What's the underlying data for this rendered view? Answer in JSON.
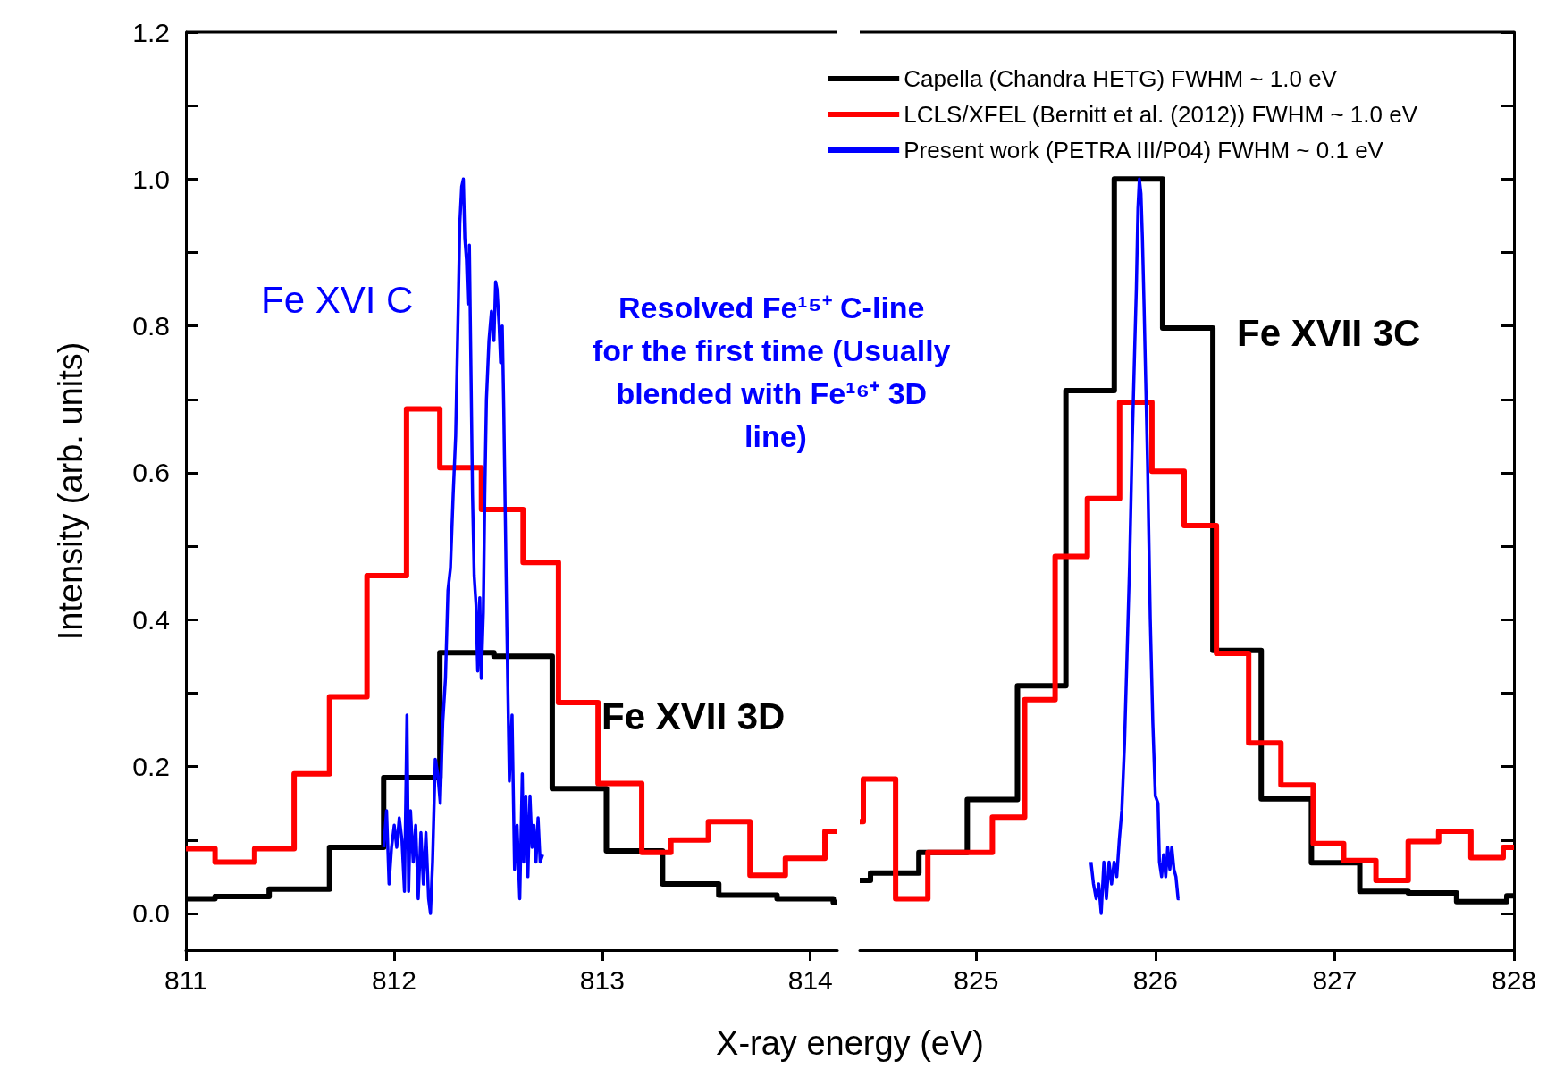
{
  "chart_data": [
    {
      "type": "step",
      "xlabel": "X-ray energy (eV)",
      "ylabel": "Intensity (arb. units)",
      "xlim": [
        811,
        814.13
      ],
      "xticks": [
        811,
        812,
        813,
        814
      ],
      "ylim": [
        -0.05,
        1.2
      ],
      "yticks": [
        {
          "value": 0,
          "label": "0.0"
        },
        {
          "value": 0.1,
          "label": null
        },
        {
          "value": 0.2,
          "label": "0.2"
        },
        {
          "value": 0.3,
          "label": null
        },
        {
          "value": 0.4,
          "label": "0.4"
        },
        {
          "value": 0.5,
          "label": null
        },
        {
          "value": 0.6,
          "label": "0.6"
        },
        {
          "value": 0.7,
          "label": null
        },
        {
          "value": 0.8,
          "label": "0.8"
        },
        {
          "value": 0.9,
          "label": null
        },
        {
          "value": 1,
          "label": "1.0"
        },
        {
          "value": 1.1,
          "label": null
        },
        {
          "value": 1.2,
          "label": "1.2"
        }
      ],
      "legend": "top right",
      "series": [
        {
          "name": "Capella (Chandra HETG) FWHM ~ 1.0 eV",
          "color": "#000000",
          "x": [
            811,
            811.14,
            811.4,
            811.69,
            811.95,
            812.22,
            812.48,
            812.76,
            813.02,
            813.29,
            813.56,
            813.84,
            814.11,
            814.13
          ],
          "values": [
            0.02,
            0.023,
            0.033,
            0.09,
            0.185,
            0.355,
            0.35,
            0.17,
            0.085,
            0.04,
            0.025,
            0.02,
            0.015,
            0.015
          ]
        },
        {
          "name": "LCLS/XFEL (Bernitt et al. (2012)) FWHM ~ 1.0 eV",
          "color": "#ff0000",
          "x": [
            811,
            811.14,
            811.33,
            811.52,
            811.69,
            811.87,
            812.06,
            812.22,
            812.42,
            812.62,
            812.79,
            812.98,
            813.19,
            813.33,
            813.51,
            813.71,
            813.88,
            814.07,
            814.13
          ],
          "values": [
            0.088,
            0.07,
            0.088,
            0.19,
            0.295,
            0.46,
            0.687,
            0.607,
            0.55,
            0.478,
            0.287,
            0.177,
            0.083,
            0.1,
            0.125,
            0.052,
            0.075,
            0.112,
            0.112
          ]
        },
        {
          "name": "Present work (PETRA III/P04) FWHM ~ 0.1 eV",
          "type": "line",
          "color": "#0000ff",
          "x": [
            811.951,
            811.964,
            811.976,
            811.988,
            812.001,
            812.013,
            812.025,
            812.038,
            812.05,
            812.062,
            812.07,
            812.079,
            812.092,
            812.104,
            812.116,
            812.129,
            812.141,
            812.153,
            812.166,
            812.175,
            812.185,
            812.198,
            812.21,
            812.222,
            812.234,
            812.247,
            812.259,
            812.271,
            812.284,
            812.296,
            812.308,
            812.316,
            812.325,
            812.333,
            812.34,
            812.348,
            812.355,
            812.362,
            812.37,
            812.377,
            812.385,
            812.394,
            812.402,
            812.412,
            812.419,
            812.429,
            812.436,
            812.444,
            812.456,
            812.468,
            812.48,
            812.488,
            812.495,
            812.505,
            812.512,
            812.52,
            812.527,
            812.535,
            812.542,
            812.554,
            812.567,
            812.579,
            812.591,
            812.604,
            812.616,
            812.623,
            812.633,
            812.643,
            812.653,
            812.663,
            812.672,
            812.682,
            812.692,
            812.702,
            812.714
          ],
          "values": [
            0.09,
            0.14,
            0.04,
            0.09,
            0.12,
            0.09,
            0.13,
            0.1,
            0.03,
            0.27,
            0.03,
            0.14,
            0.07,
            0.12,
            0.02,
            0.11,
            0.04,
            0.11,
            0.02,
            0,
            0.07,
            0.21,
            0.19,
            0.15,
            0.26,
            0.32,
            0.44,
            0.47,
            0.57,
            0.65,
            0.82,
            0.94,
            0.99,
            1,
            0.92,
            0.89,
            0.83,
            0.91,
            0.73,
            0.57,
            0.46,
            0.42,
            0.33,
            0.43,
            0.32,
            0.41,
            0.57,
            0.7,
            0.78,
            0.82,
            0.78,
            0.86,
            0.85,
            0.8,
            0.75,
            0.8,
            0.69,
            0.53,
            0.39,
            0.18,
            0.27,
            0.06,
            0.12,
            0.02,
            0.19,
            0.07,
            0.16,
            0.05,
            0.16,
            0.09,
            0.12,
            0.07,
            0.13,
            0.07,
            0.08
          ]
        }
      ],
      "annotations": [
        "Fe XVI C",
        "Resolved Fe¹⁵⁺ C-line for the first time (Usually blended with Fe¹⁶⁺ 3D line)",
        "Fe XVII 3D"
      ]
    },
    {
      "type": "step",
      "tick_labels": "x",
      "xlim": [
        824.35,
        828
      ],
      "xticks": [
        825,
        826,
        827,
        828
      ],
      "ylim": [
        -0.05,
        1.2
      ],
      "yticks": [
        {
          "value": 0,
          "label": null
        },
        {
          "value": 0.1,
          "label": null
        },
        {
          "value": 0.2,
          "label": null
        },
        {
          "value": 0.3,
          "label": null
        },
        {
          "value": 0.4,
          "label": null
        },
        {
          "value": 0.5,
          "label": null
        },
        {
          "value": 0.6,
          "label": null
        },
        {
          "value": 0.7,
          "label": null
        },
        {
          "value": 0.8,
          "label": null
        },
        {
          "value": 0.9,
          "label": null
        },
        {
          "value": 1,
          "label": null
        },
        {
          "value": 1.1,
          "label": null
        },
        {
          "value": 1.2,
          "label": null
        }
      ],
      "series": [
        {
          "color": "#000000",
          "x": [
            824.35,
            824.41,
            824.68,
            824.95,
            825.23,
            825.5,
            825.77,
            826.04,
            826.32,
            826.59,
            826.87,
            827.14,
            827.41,
            827.68,
            827.96,
            828
          ],
          "values": [
            0.045,
            0.055,
            0.083,
            0.155,
            0.31,
            0.712,
            1.0,
            0.797,
            0.358,
            0.156,
            0.069,
            0.03,
            0.028,
            0.016,
            0.024,
            0.024
          ]
        },
        {
          "color": "#ff0000",
          "x": [
            824.35,
            824.37,
            824.55,
            824.73,
            825.09,
            825.27,
            825.44,
            825.62,
            825.8,
            825.98,
            826.16,
            826.34,
            826.52,
            826.7,
            826.88,
            827.05,
            827.23,
            827.41,
            827.58,
            827.76,
            827.94,
            828
          ],
          "values": [
            0.125,
            0.183,
            0.02,
            0.083,
            0.131,
            0.291,
            0.486,
            0.565,
            0.696,
            0.602,
            0.528,
            0.354,
            0.232,
            0.175,
            0.095,
            0.072,
            0.045,
            0.098,
            0.112,
            0.076,
            0.09,
            0.09
          ]
        },
        {
          "type": "line",
          "color": "#0000ff",
          "x": [
            825.64,
            825.654,
            825.669,
            825.683,
            825.697,
            825.712,
            825.726,
            825.741,
            825.755,
            825.769,
            825.784,
            825.798,
            825.812,
            825.827,
            825.841,
            825.856,
            825.87,
            825.884,
            825.893,
            825.902,
            825.91,
            825.919,
            825.927,
            825.936,
            825.945,
            825.956,
            825.971,
            825.985,
            825.999,
            826.014,
            826.022,
            826.034,
            826.045,
            826.057,
            826.068,
            826.08,
            826.091,
            826.103,
            826.114,
            826.126,
            826.134
          ],
          "values": [
            0.07,
            0.04,
            0.02,
            0.04,
            0,
            0.07,
            0.02,
            0.07,
            0.04,
            0.07,
            0.05,
            0.1,
            0.14,
            0.23,
            0.35,
            0.48,
            0.64,
            0.77,
            0.85,
            0.96,
            1,
            0.98,
            0.92,
            0.83,
            0.73,
            0.61,
            0.4,
            0.26,
            0.16,
            0.15,
            0.07,
            0.05,
            0.08,
            0.05,
            0.09,
            0.06,
            0.09,
            0.06,
            0.05,
            0.02,
            0.02
          ]
        }
      ],
      "annotations": [
        "Fe XVII 3C"
      ]
    }
  ]
}
